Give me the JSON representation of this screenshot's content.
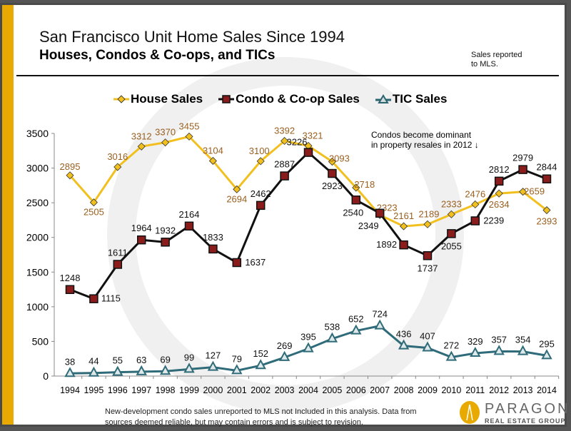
{
  "title": "San Francisco Unit Home Sales Since 1994",
  "subtitle": "Houses, Condos & Co-ops, and TICs",
  "note": "Sales reported to MLS.",
  "footnote_line1": "New-development condo sales unreported to MLS not Included in this analysis. Data from",
  "footnote_line2": "sources deemed reliable, but may contain errors and is subject to revision.",
  "logo": {
    "name": "PARAGON",
    "tagline": "REAL ESTATE GROUP"
  },
  "colors": {
    "house": "#f2c01e",
    "house_label": "#9a5f1f",
    "condo_line": "#111111",
    "condo_marker": "#8b1c1c",
    "tic": "#2f6b78",
    "brand": "#e8a900"
  },
  "chart_data": {
    "type": "line",
    "title": "San Francisco Unit Home Sales Since 1994",
    "legend_position": "top",
    "ylim": [
      0,
      3500
    ],
    "yticks": [
      0,
      500,
      1000,
      1500,
      2000,
      2500,
      3000,
      3500
    ],
    "grid": false,
    "categories": [
      "1994",
      "1995",
      "1996",
      "1997",
      "1998",
      "1999",
      "2000",
      "2001",
      "2002",
      "2003",
      "2004",
      "2005",
      "2006",
      "2007",
      "2008",
      "2009",
      "2010",
      "2011",
      "2012",
      "2013",
      "2014"
    ],
    "series": [
      {
        "name": "House Sales",
        "marker": "diamond",
        "values": [
          2895,
          2505,
          3016,
          3312,
          3370,
          3455,
          3104,
          2694,
          3100,
          3392,
          3321,
          3093,
          2718,
          2323,
          2161,
          2189,
          2333,
          2476,
          2634,
          2659,
          2393
        ]
      },
      {
        "name": "Condo & Co-op Sales",
        "marker": "square",
        "values": [
          1248,
          1115,
          1611,
          1964,
          1932,
          2164,
          1833,
          1637,
          2462,
          2887,
          3226,
          2923,
          2540,
          2349,
          1892,
          1737,
          2055,
          2239,
          2812,
          2979,
          2844
        ]
      },
      {
        "name": "TIC Sales",
        "marker": "triangle",
        "values": [
          38,
          44,
          55,
          63,
          69,
          99,
          127,
          79,
          152,
          269,
          395,
          538,
          652,
          724,
          436,
          407,
          272,
          329,
          357,
          354,
          295
        ]
      }
    ],
    "annotation": "Condos become dominant in property resales in 2012 ↓",
    "annotation_line1": "Condos become dominant",
    "annotation_line2": "in property resales in 2012 ↓"
  }
}
